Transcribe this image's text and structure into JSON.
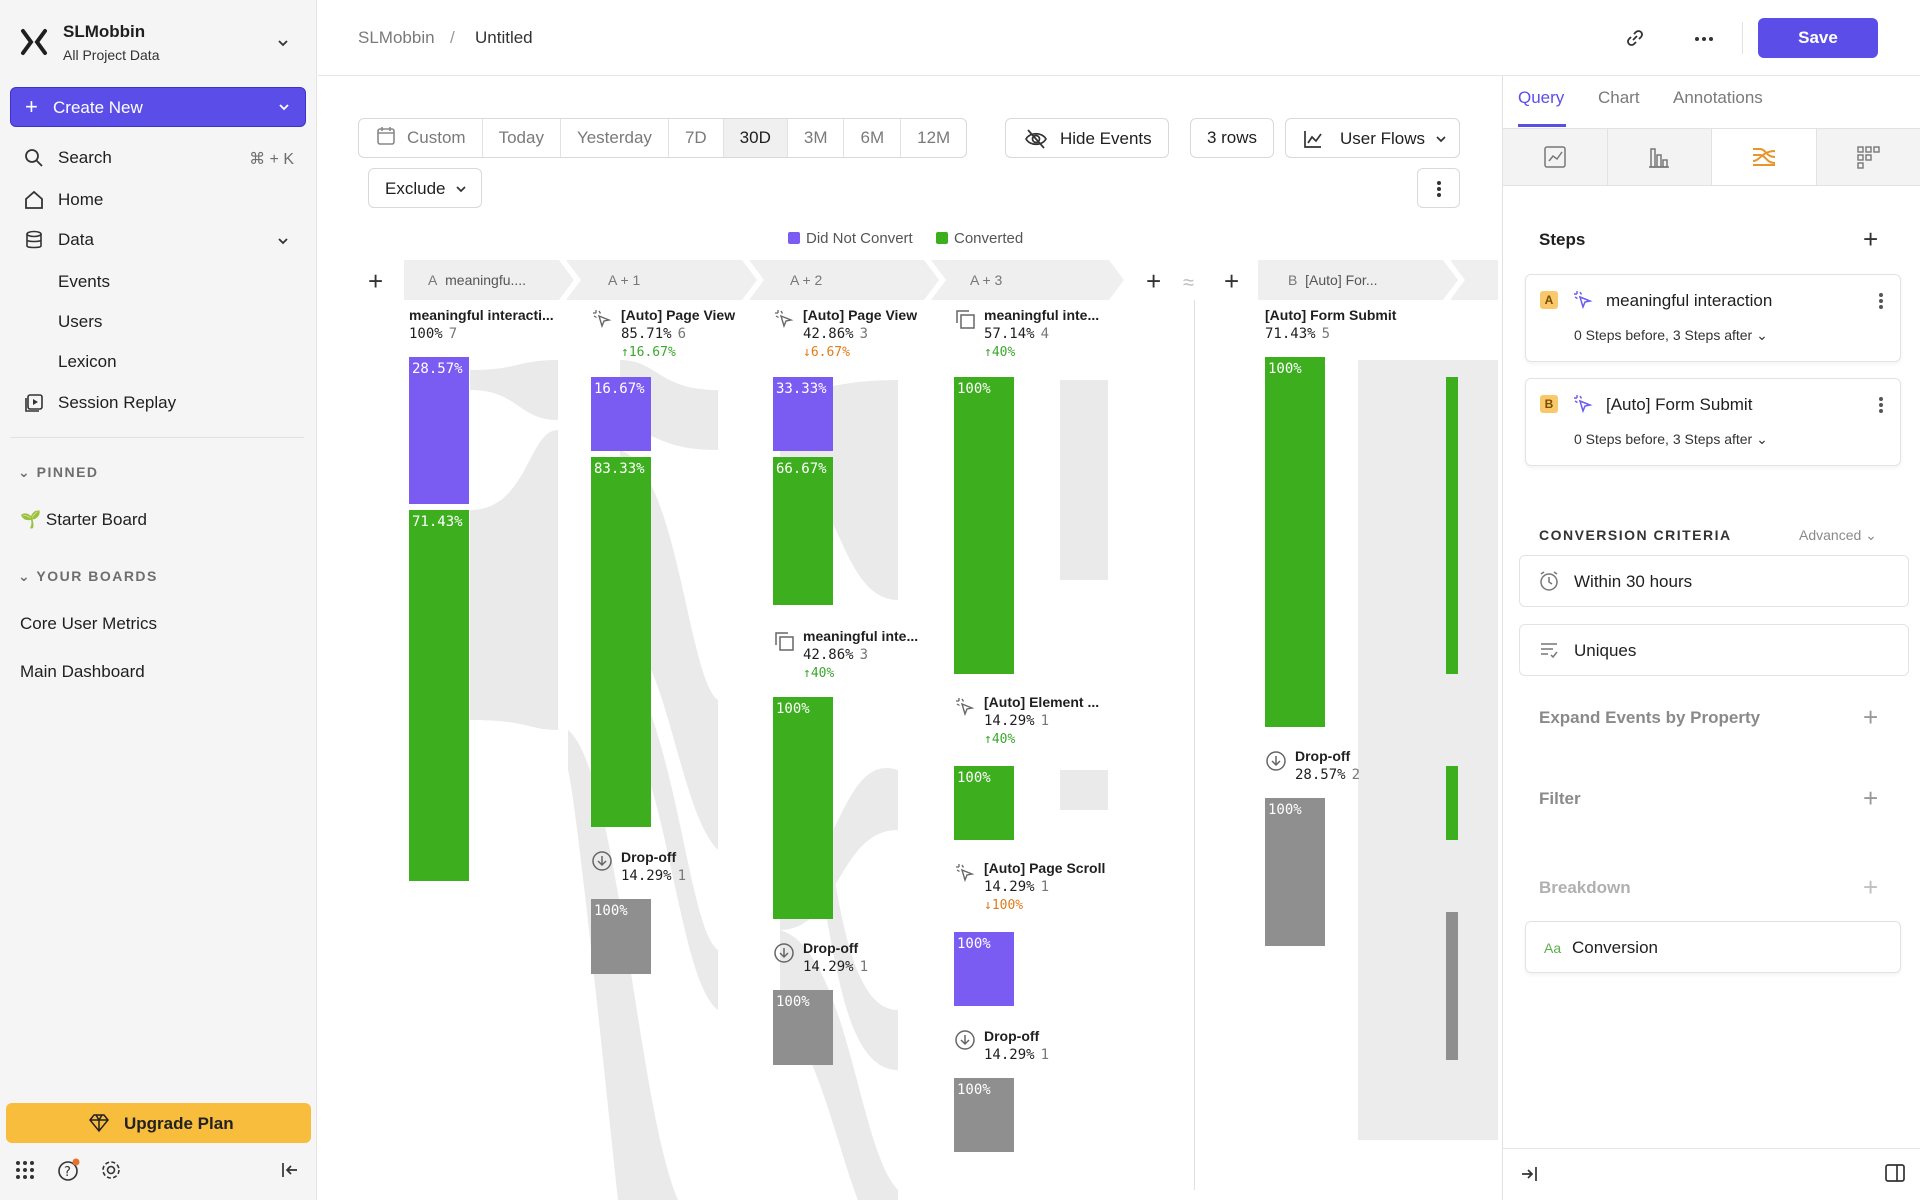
{
  "org": {
    "name": "SLMobbin",
    "subtitle": "All Project Data"
  },
  "sidebar": {
    "create_label": "Create New",
    "search_label": "Search",
    "search_shortcut": "⌘ + K",
    "home_label": "Home",
    "data_label": "Data",
    "data_items": [
      "Events",
      "Users",
      "Lexicon"
    ],
    "session_replay_label": "Session Replay",
    "pinned_header": "PINNED",
    "pinned_items": [
      "Starter Board"
    ],
    "boards_header": "YOUR BOARDS",
    "boards": [
      "Core User Metrics",
      "Main Dashboard"
    ],
    "upgrade_label": "Upgrade Plan"
  },
  "header": {
    "breadcrumb_root": "SLMobbin",
    "breadcrumb_sep": "/",
    "breadcrumb_current": "Untitled",
    "save_label": "Save"
  },
  "toolbar": {
    "ranges": [
      "Custom",
      "Today",
      "Yesterday",
      "7D",
      "30D",
      "3M",
      "6M",
      "12M"
    ],
    "active_range": "30D",
    "hide_events_label": "Hide Events",
    "rows_label": "3 rows",
    "view_label": "User Flows",
    "exclude_label": "Exclude"
  },
  "legend": [
    {
      "label": "Did Not Convert",
      "color": "#7b5cf2"
    },
    {
      "label": "Converted",
      "color": "#3daf1f"
    }
  ],
  "step_headers": [
    {
      "prefix": "A",
      "label": "meaningfu...."
    },
    {
      "prefix": "",
      "label": "A + 1"
    },
    {
      "prefix": "",
      "label": "A + 2"
    },
    {
      "prefix": "",
      "label": "A + 3"
    },
    {
      "prefix": "B",
      "label": "[Auto] For..."
    }
  ],
  "nodes": [
    {
      "title": "meaningful interacti...",
      "pct": "100%",
      "count": "7",
      "delta": ""
    },
    {
      "title": "[Auto] Page View",
      "pct": "85.71%",
      "count": "6",
      "delta": "↑16.67%"
    },
    {
      "title": "Drop-off",
      "pct": "14.29%",
      "count": "1",
      "delta": ""
    },
    {
      "title": "[Auto] Page View",
      "pct": "42.86%",
      "count": "3",
      "delta": "↓6.67%"
    },
    {
      "title": "meaningful inte...",
      "pct": "42.86%",
      "count": "3",
      "delta": "↑40%"
    },
    {
      "title": "Drop-off",
      "pct": "14.29%",
      "count": "1",
      "delta": ""
    },
    {
      "title": "meaningful inte...",
      "pct": "57.14%",
      "count": "4",
      "delta": "↑40%"
    },
    {
      "title": "[Auto] Element ...",
      "pct": "14.29%",
      "count": "1",
      "delta": "↑40%"
    },
    {
      "title": "[Auto] Page Scroll",
      "pct": "14.29%",
      "count": "1",
      "delta": "↓100%"
    },
    {
      "title": "Drop-off",
      "pct": "14.29%",
      "count": "1",
      "delta": ""
    },
    {
      "title": "[Auto] Form Submit",
      "pct": "71.43%",
      "count": "5",
      "delta": ""
    },
    {
      "title": "Drop-off",
      "pct": "28.57%",
      "count": "2",
      "delta": ""
    }
  ],
  "bars": [
    {
      "label": "28.57%",
      "share": 0.2857,
      "kind": "did_not_convert"
    },
    {
      "label": "71.43%",
      "share": 0.7143,
      "kind": "converted"
    },
    {
      "label": "16.67%",
      "share": 0.1667,
      "kind": "did_not_convert"
    },
    {
      "label": "83.33%",
      "share": 0.8333,
      "kind": "converted"
    },
    {
      "label": "100%",
      "share": 1.0,
      "kind": "drop_off"
    },
    {
      "label": "33.33%",
      "share": 0.3333,
      "kind": "did_not_convert"
    },
    {
      "label": "66.67%",
      "share": 0.6667,
      "kind": "converted"
    },
    {
      "label": "100%",
      "share": 1.0,
      "kind": "converted"
    },
    {
      "label": "100%",
      "share": 1.0,
      "kind": "drop_off"
    },
    {
      "label": "100%",
      "share": 1.0,
      "kind": "converted"
    },
    {
      "label": "100%",
      "share": 1.0,
      "kind": "converted"
    },
    {
      "label": "100%",
      "share": 1.0,
      "kind": "did_not_convert"
    },
    {
      "label": "100%",
      "share": 1.0,
      "kind": "drop_off"
    },
    {
      "label": "100%",
      "share": 1.0,
      "kind": "converted"
    },
    {
      "label": "100%",
      "share": 1.0,
      "kind": "drop_off"
    }
  ],
  "panel": {
    "tabs": [
      "Query",
      "Chart",
      "Annotations"
    ],
    "active_tab": "Query",
    "steps_title": "Steps",
    "steps": [
      {
        "badge": "A",
        "name": "meaningful interaction",
        "range": "0 Steps before, 3 Steps after"
      },
      {
        "badge": "B",
        "name": "[Auto] Form Submit",
        "range": "0 Steps before, 3 Steps after"
      }
    ],
    "criteria_title": "CONVERSION CRITERIA",
    "advanced_label": "Advanced",
    "window_label": "Within 30 hours",
    "uniques_label": "Uniques",
    "expand_label": "Expand Events by Property",
    "filter_label": "Filter",
    "breakdown_label": "Breakdown",
    "breakdown_value_icon": "Aa",
    "breakdown_value": "Conversion"
  }
}
